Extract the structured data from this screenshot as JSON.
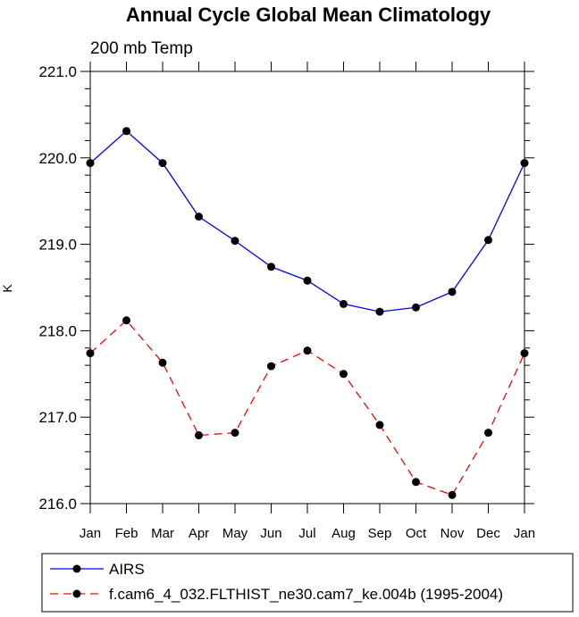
{
  "chart_data": {
    "type": "line",
    "title": "Annual Cycle Global Mean Climatology",
    "subtitle": "200 mb Temp",
    "xlabel": "",
    "ylabel": "K",
    "categories": [
      "Jan",
      "Feb",
      "Mar",
      "Apr",
      "May",
      "Jun",
      "Jul",
      "Aug",
      "Sep",
      "Oct",
      "Nov",
      "Dec",
      "Jan"
    ],
    "ylim": [
      216.0,
      221.0
    ],
    "y_ticks": [
      "216.0",
      "217.0",
      "218.0",
      "219.0",
      "220.0",
      "221.0"
    ],
    "grid": false,
    "legend_position": "bottom",
    "series": [
      {
        "name": "AIRS",
        "color": "#0000ff",
        "line_style": "solid",
        "values": [
          219.94,
          220.31,
          219.94,
          219.32,
          219.04,
          218.74,
          218.58,
          218.31,
          218.22,
          218.27,
          218.45,
          219.05,
          219.94
        ]
      },
      {
        "name": "f.cam6_4_032.FLTHIST_ne30.cam7_ke.004b (1995-2004)",
        "color": "#ff0000",
        "line_style": "dashed",
        "values": [
          217.74,
          218.12,
          217.63,
          216.79,
          216.82,
          217.59,
          217.77,
          217.5,
          216.91,
          216.25,
          216.1,
          216.82,
          217.74
        ]
      }
    ]
  }
}
